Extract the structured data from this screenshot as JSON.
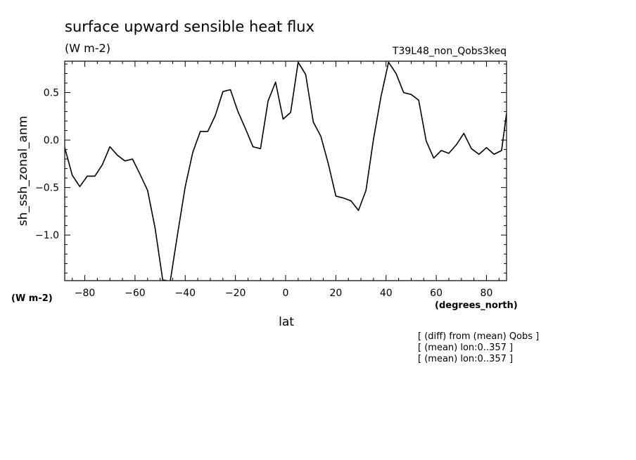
{
  "chart_data": {
    "type": "line",
    "title": "surface upward sensible heat flux",
    "units": "(W m-2)",
    "run_label": "T39L48_non_Qobs3keq",
    "ylabel": "sh_ssh_zonal_anm",
    "yunits": "(W m-2)",
    "xlabel": "lat",
    "xunits": "(degrees_north)",
    "xlim": [
      -88,
      88
    ],
    "ylim": [
      -1.48,
      0.83
    ],
    "xticks": [
      -80,
      -60,
      -40,
      -20,
      0,
      20,
      40,
      60,
      80
    ],
    "xtick_labels": [
      "−80",
      "−60",
      "−40",
      "−20",
      "0",
      "20",
      "40",
      "60",
      "80"
    ],
    "yticks": [
      0.5,
      0.0,
      -0.5,
      -1.0
    ],
    "ytick_labels": [
      "0.5",
      "0.0",
      "−0.5",
      "−1.0"
    ],
    "notes": [
      "[ (diff) from (mean) Qobs ]",
      "[ (mean) lon:0..357 ]",
      "[ (mean) lon:0..357 ]"
    ],
    "series": [
      {
        "x": [
          -88,
          -85,
          -82,
          -79,
          -76,
          -73,
          -70,
          -67,
          -64,
          -61,
          -58,
          -55,
          -52,
          -49,
          -46,
          -43,
          -40,
          -37,
          -34,
          -31,
          -28,
          -25,
          -22,
          -19,
          -16,
          -13,
          -10,
          -7,
          -4,
          -1,
          2,
          5,
          8,
          11,
          14,
          17,
          20,
          23,
          26,
          29,
          32,
          35,
          38,
          41,
          44,
          47,
          50,
          53,
          56,
          59,
          62,
          65,
          68,
          71,
          74,
          77,
          80,
          83,
          86,
          88
        ],
        "y": [
          -0.08,
          -0.37,
          -0.49,
          -0.38,
          -0.38,
          -0.26,
          -0.07,
          -0.16,
          -0.22,
          -0.2,
          -0.36,
          -0.53,
          -0.93,
          -1.47,
          -1.49,
          -0.98,
          -0.49,
          -0.13,
          0.09,
          0.09,
          0.26,
          0.51,
          0.53,
          0.3,
          0.12,
          -0.07,
          -0.09,
          0.41,
          0.61,
          0.22,
          0.29,
          0.82,
          0.69,
          0.19,
          0.04,
          -0.25,
          -0.59,
          -0.61,
          -0.64,
          -0.74,
          -0.53,
          0.01,
          0.46,
          0.82,
          0.7,
          0.5,
          0.48,
          0.42,
          -0.01,
          -0.19,
          -0.11,
          -0.14,
          -0.05,
          0.07,
          -0.09,
          -0.15,
          -0.08,
          -0.15,
          -0.11,
          0.28
        ]
      }
    ]
  }
}
